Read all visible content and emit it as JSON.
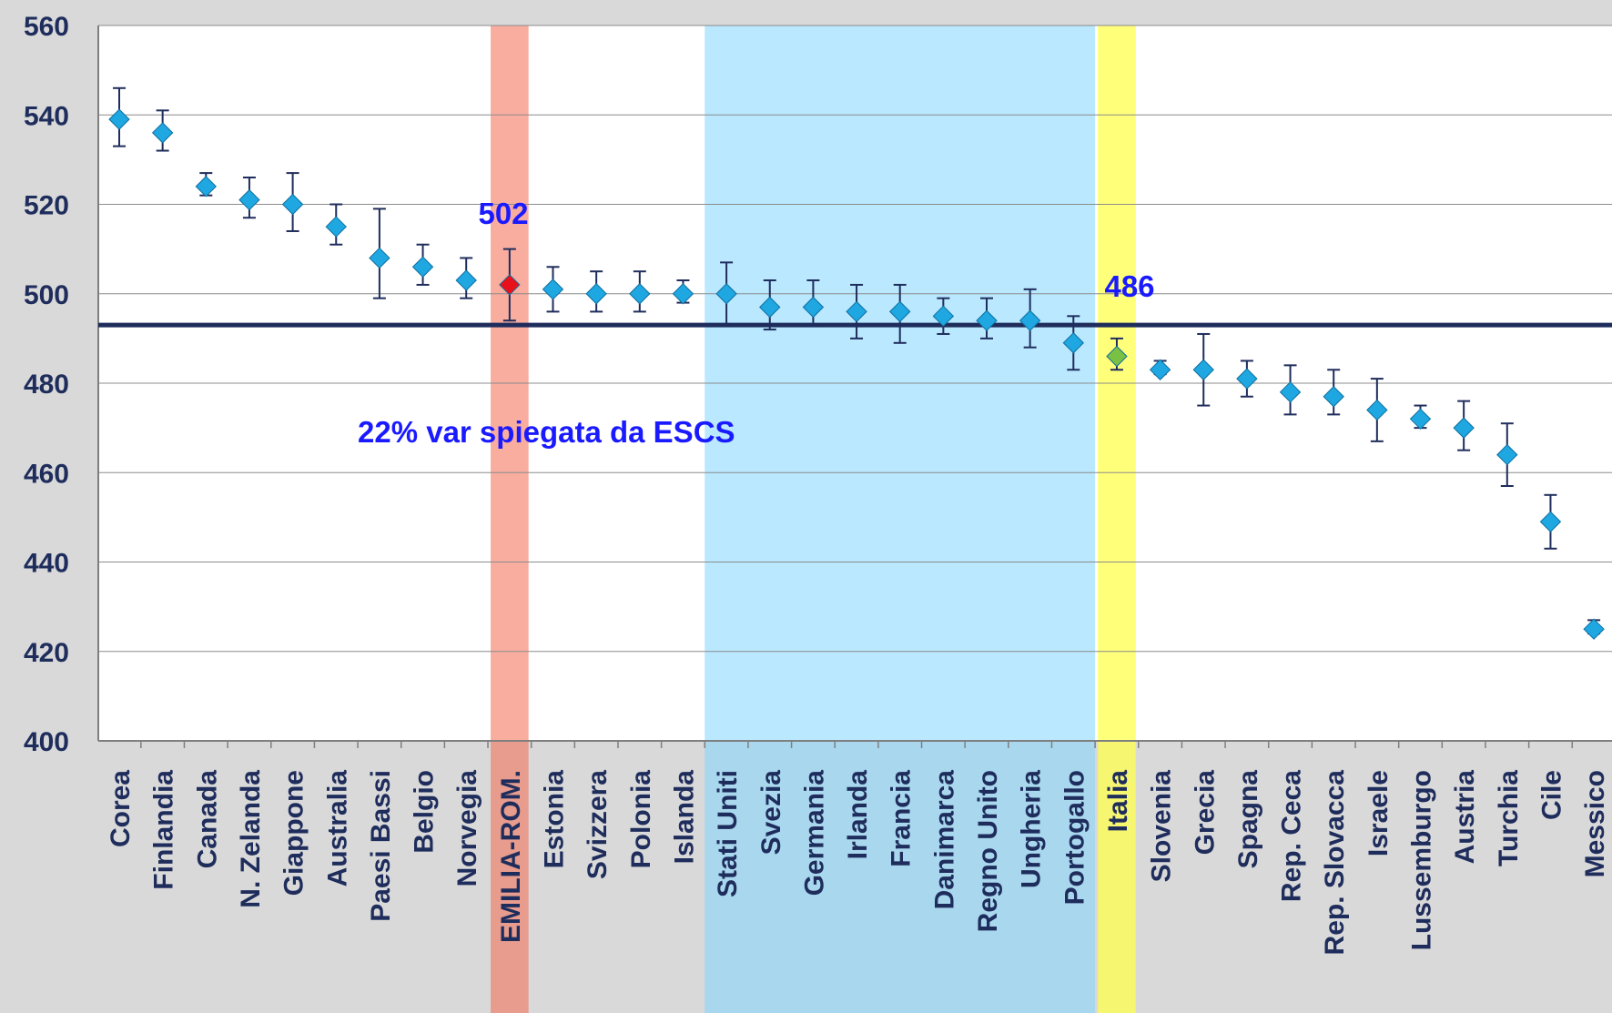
{
  "chart_data": {
    "type": "scatter",
    "title": "",
    "xlabel": "",
    "ylabel": "",
    "ylim": [
      400,
      560
    ],
    "yticks": [
      400,
      420,
      440,
      460,
      480,
      500,
      520,
      540,
      560
    ],
    "grid": true,
    "reference_line": 493,
    "categories": [
      "Corea",
      "Finlandia",
      "Canada",
      "N. Zelanda",
      "Giappone",
      "Australia",
      "Paesi Bassi",
      "Belgio",
      "Norvegia",
      "EMILIA-ROM.",
      "Estonia",
      "Svizzera",
      "Polonia",
      "Islanda",
      "Stati Uniti",
      "Svezia",
      "Germania",
      "Irlanda",
      "Francia",
      "Danimarca",
      "Regno Unito",
      "Ungheria",
      "Portogallo",
      "Italia",
      "Slovenia",
      "Grecia",
      "Spagna",
      "Rep. Ceca",
      "Rep. Slovacca",
      "Israele",
      "Lussemburgo",
      "Austria",
      "Turchia",
      "Cile",
      "Messico"
    ],
    "values": [
      539,
      536,
      524,
      521,
      520,
      515,
      508,
      506,
      503,
      502,
      501,
      500,
      500,
      500,
      500,
      497,
      497,
      496,
      496,
      495,
      494,
      494,
      489,
      486,
      483,
      483,
      481,
      478,
      477,
      474,
      472,
      470,
      464,
      449,
      425
    ],
    "error_low": [
      533,
      532,
      522,
      517,
      514,
      511,
      499,
      502,
      499,
      494,
      496,
      496,
      496,
      498,
      493,
      492,
      493,
      490,
      489,
      491,
      490,
      488,
      483,
      483,
      482,
      475,
      477,
      473,
      473,
      467,
      470,
      465,
      457,
      443,
      424
    ],
    "error_high": [
      546,
      541,
      527,
      526,
      527,
      520,
      519,
      511,
      508,
      510,
      506,
      505,
      505,
      503,
      507,
      503,
      503,
      502,
      502,
      499,
      499,
      501,
      495,
      490,
      485,
      491,
      485,
      484,
      483,
      481,
      475,
      476,
      471,
      455,
      427
    ],
    "highlight_colors": {
      "default": "#1ea7e1",
      "emilia": "#e8101a",
      "italia": "#7ac143"
    },
    "bands": [
      {
        "name": "emilia",
        "from": "EMILIA-ROM.",
        "to": "EMILIA-ROM.",
        "color": "#f26a50"
      },
      {
        "name": "group",
        "from": "Stati Uniti",
        "to": "Portogallo",
        "color": "#7fd6ff"
      },
      {
        "name": "italia",
        "from": "Italia",
        "to": "Italia",
        "color": "#ffff4d"
      }
    ],
    "annotations": {
      "emilia_value": "502",
      "italia_value": "486",
      "note": "22% var  spiegata da ESCS"
    }
  }
}
